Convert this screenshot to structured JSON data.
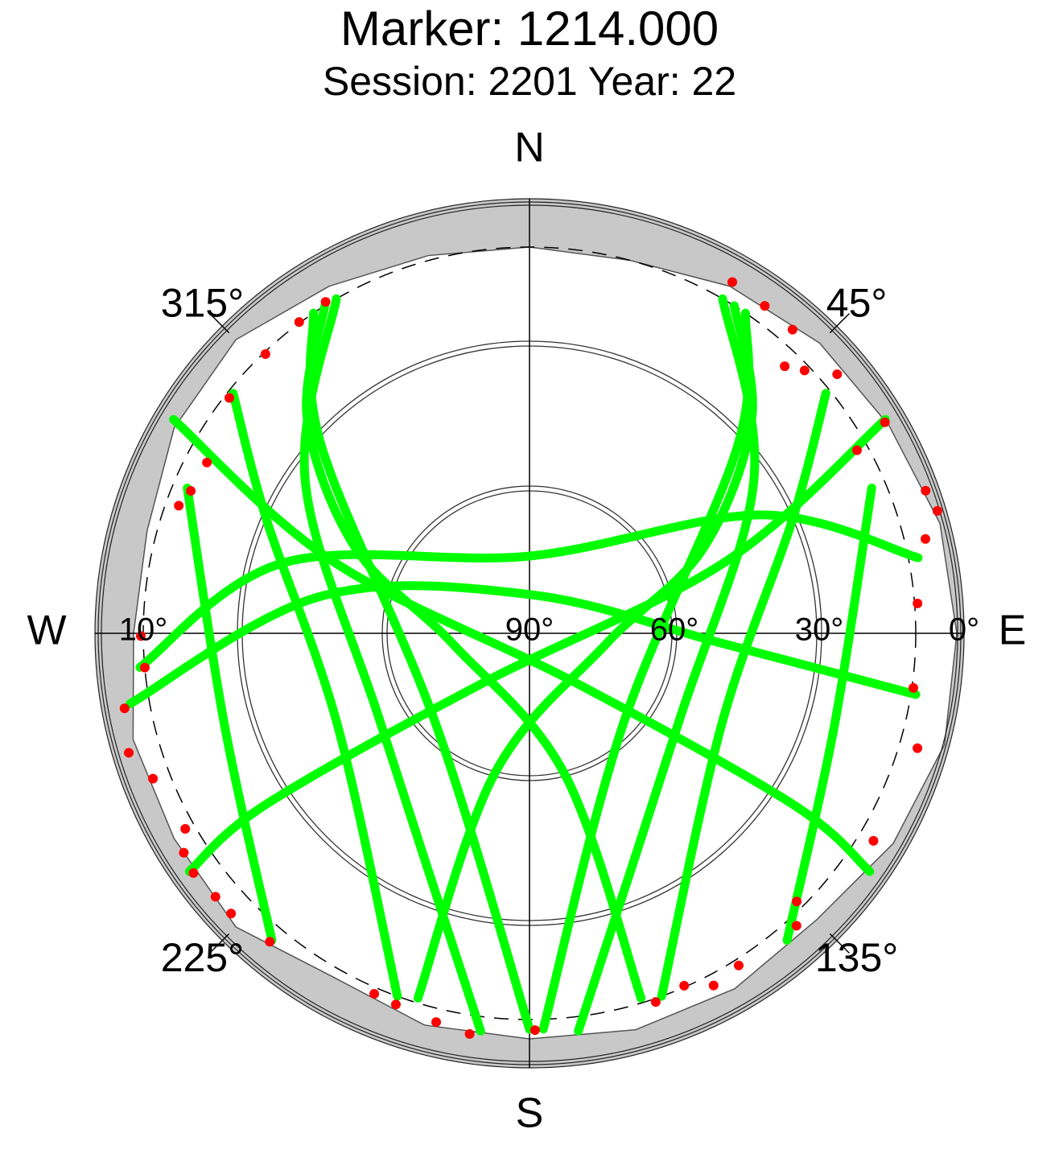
{
  "chart_data": {
    "type": "polar_skyplot",
    "title": "Marker: 1214.000",
    "subtitle": "Session: 2201 Year: 22",
    "rlim": [
      90,
      0
    ],
    "elevation_ticks": [
      {
        "value": 0,
        "label": "0°"
      },
      {
        "value": 30,
        "label": "30°"
      },
      {
        "value": 60,
        "label": "60°"
      },
      {
        "value": 90,
        "label": "90°"
      }
    ],
    "cutoff_ring": {
      "value": 10,
      "label": "10°"
    },
    "directions": [
      {
        "value": 0,
        "label": "N"
      },
      {
        "value": 90,
        "label": "E"
      },
      {
        "value": 180,
        "label": "S"
      },
      {
        "value": 270,
        "label": "W"
      }
    ],
    "azimuth_ticks": [
      {
        "value": 45,
        "label": "45°"
      },
      {
        "value": 135,
        "label": "135°"
      },
      {
        "value": 225,
        "label": "225°"
      },
      {
        "value": 315,
        "label": "315°"
      }
    ],
    "track_color": "#00ff00",
    "series": [
      {
        "azimuth": [
          328,
          314,
          296,
          262,
          166,
          163
        ],
        "values": [
          10,
          26,
          50,
          74,
          60,
          11
        ]
      },
      {
        "azimuth": [
          32,
          46,
          64,
          98,
          194,
          197
        ],
        "values": [
          10,
          26,
          50,
          74,
          60,
          11
        ]
      },
      {
        "azimuth": [
          330,
          304,
          239,
          187
        ],
        "values": [
          10,
          34,
          54,
          7
        ]
      },
      {
        "azimuth": [
          30,
          56,
          121,
          173
        ],
        "values": [
          10,
          34,
          54,
          7
        ]
      },
      {
        "azimuth": [
          265,
          286,
          0,
          63,
          79
        ],
        "values": [
          9,
          37,
          74,
          36,
          8
        ]
      },
      {
        "azimuth": [
          260,
          280,
          2,
          93,
          99
        ],
        "values": [
          6,
          46,
          82,
          50,
          9
        ]
      },
      {
        "azimuth": [
          59,
          70,
          223,
          237,
          235
        ],
        "values": [
          4,
          47,
          76,
          25,
          4
        ]
      },
      {
        "azimuth": [
          301,
          290,
          137,
          123,
          125
        ],
        "values": [
          4,
          47,
          76,
          25,
          4
        ]
      },
      {
        "azimuth": [
          309,
          293,
          245,
          200
        ],
        "values": [
          11,
          31,
          46,
          10
        ]
      },
      {
        "azimuth": [
          51,
          67,
          115,
          160
        ],
        "values": [
          11,
          31,
          46,
          10
        ]
      },
      {
        "azimuth": [
          293,
          253,
          220
        ],
        "values": [
          13,
          24,
          7
        ]
      },
      {
        "azimuth": [
          67,
          107,
          140
        ],
        "values": [
          13,
          24,
          7
        ]
      },
      {
        "azimuth": [
          326,
          312,
          226,
          180
        ],
        "values": [
          10,
          32,
          63,
          8
        ]
      },
      {
        "azimuth": [
          34,
          48,
          134,
          178
        ],
        "values": [
          10,
          32,
          63,
          8
        ]
      }
    ],
    "points": {
      "color": "#ff0000",
      "azimuth": [
        328.4,
        323.5,
        316.6,
        308.1,
        297.9,
        292.8,
        290,
        269.6,
        264.9,
        259.5,
        253.4,
        248.9,
        240.4,
        237.6,
        234.5,
        230,
        226.8,
        220.1,
        203.3,
        199.8,
        193.5,
        188.5,
        179.2,
        161.1,
        156.3,
        152.4,
        147.8,
        137.6,
        135.1,
        121.1,
        106.5,
        98.1,
        85.6,
        76.6,
        73.3,
        70.2,
        59.3,
        60.8,
        49.9,
        40.9,
        35.7,
        30,
        46.3,
        43.7
      ],
      "values": [
        9.4,
        9.8,
        10.4,
        11,
        14.4,
        13.9,
        12.7,
        9.5,
        10,
        4.7,
        3.4,
        6.4,
        8,
        5.2,
        4.5,
        5.1,
        5.2,
        6.5,
        8.7,
        8.3,
        7.2,
        6.1,
        7.8,
        9.3,
        10.3,
        7.7,
        8.7,
        8,
        11.6,
        6.8,
        6.2,
        9.7,
        9.4,
        5.7,
        1.8,
        2.8,
        4.4,
        12.3,
        6.7,
        6.8,
        6.5,
        6,
        11.2,
        13.5
      ]
    },
    "horizon_mask": {
      "color": "#c8c8c8",
      "azimuth": [
        0,
        15,
        30,
        45,
        60,
        75,
        90,
        105,
        120,
        135,
        150,
        165,
        180,
        195,
        210,
        225,
        240,
        255,
        270,
        285,
        300,
        315,
        330,
        345
      ],
      "values": [
        10,
        10,
        7,
        5,
        4,
        2,
        1.5,
        1,
        3,
        6,
        5,
        5,
        6,
        6,
        8,
        4,
        5,
        5,
        8,
        8,
        5,
        4,
        7,
        9
      ]
    }
  }
}
